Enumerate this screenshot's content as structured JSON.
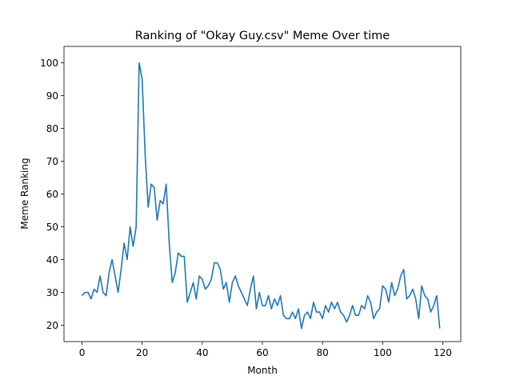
{
  "chart_data": {
    "type": "line",
    "title": "Ranking of \"Okay Guy.csv\" Meme Over time",
    "xlabel": "Month",
    "ylabel": "Meme Ranking",
    "xlim": [
      -6,
      126
    ],
    "ylim": [
      15,
      105
    ],
    "xticks": [
      0,
      20,
      40,
      60,
      80,
      100,
      120
    ],
    "yticks": [
      20,
      30,
      40,
      50,
      60,
      70,
      80,
      90,
      100
    ],
    "grid": false,
    "line_color": "#1f77b4",
    "series": [
      {
        "values": [
          29,
          30,
          30,
          28,
          31,
          30,
          35,
          30,
          29,
          36,
          40,
          35,
          30,
          37,
          45,
          40,
          50,
          44,
          50,
          100,
          95,
          72,
          56,
          63,
          62,
          52,
          58,
          57,
          63,
          45,
          33,
          36,
          42,
          41,
          41,
          27,
          30,
          33,
          28,
          35,
          34,
          31,
          32,
          34,
          39,
          39,
          37,
          31,
          33,
          27,
          33,
          35,
          32,
          30,
          28,
          26,
          31,
          35,
          25,
          30,
          26,
          26,
          29,
          25,
          28,
          26,
          29,
          23,
          22,
          22,
          24,
          22,
          25,
          19,
          23,
          24,
          22,
          27,
          24,
          24,
          22,
          26,
          24,
          27,
          25,
          27,
          24,
          23,
          21,
          23,
          26,
          23,
          23,
          26,
          25,
          29,
          27,
          22,
          24,
          25,
          32,
          31,
          27,
          33,
          29,
          31,
          35,
          37,
          28,
          29,
          31,
          28,
          22,
          32,
          29,
          28,
          24,
          26,
          29,
          19
        ]
      }
    ]
  }
}
